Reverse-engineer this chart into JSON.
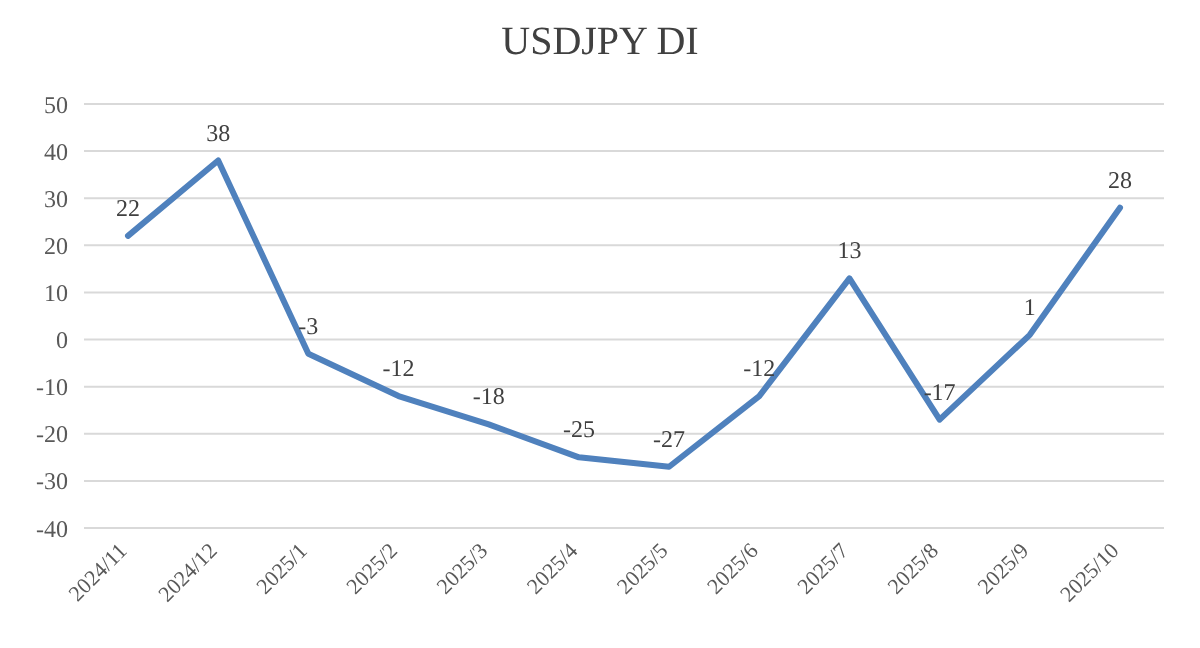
{
  "chart_data": {
    "type": "line",
    "title": "USDJPY DI",
    "categories": [
      "2024/11",
      "2024/12",
      "2025/1",
      "2025/2",
      "2025/3",
      "2025/4",
      "2025/5",
      "2025/6",
      "2025/7",
      "2025/8",
      "2025/9",
      "2025/10"
    ],
    "series": [
      {
        "color": "#4f81bd",
        "values": [
          22,
          38,
          -3,
          -12,
          -18,
          -25,
          -27,
          -12,
          13,
          -17,
          1,
          28
        ]
      }
    ],
    "ylim": [
      -40,
      50
    ],
    "yticks": [
      -40,
      -30,
      -20,
      -10,
      0,
      10,
      20,
      30,
      40,
      50
    ],
    "grid": "y",
    "legend": false,
    "marker": "none",
    "line_style": "solid",
    "data_labels": true
  }
}
